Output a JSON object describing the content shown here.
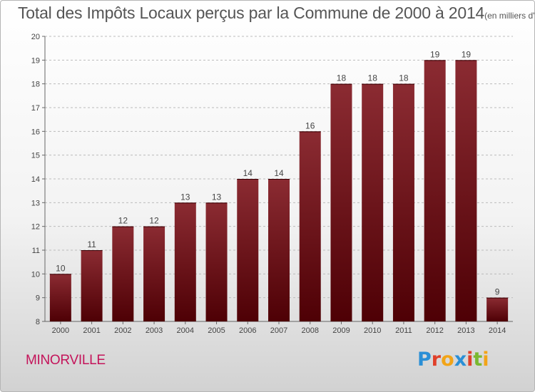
{
  "title": "Total des Impôts Locaux perçus par la Commune de 2000 à 2014",
  "subtitle": "(en milliers d'€)",
  "commune": "MINORVILLE",
  "logo": "Proxiti",
  "colors": {
    "bar": "#6e0d14",
    "bar_light": "#8a2a30",
    "commune_text": "#c4145a",
    "grid": "#bbbbbb"
  },
  "chart_data": {
    "type": "bar",
    "title": "Total des Impôts Locaux perçus par la Commune de 2000 à 2014",
    "subtitle": "(en milliers d'€)",
    "xlabel": "",
    "ylabel": "",
    "categories": [
      "2000",
      "2001",
      "2002",
      "2003",
      "2004",
      "2005",
      "2006",
      "2007",
      "2008",
      "2009",
      "2010",
      "2011",
      "2012",
      "2013",
      "2014"
    ],
    "values": [
      10,
      11,
      12,
      12,
      13,
      13,
      14,
      14,
      16,
      18,
      18,
      18,
      19,
      19,
      9
    ],
    "ylim": [
      8,
      20
    ],
    "yticks": [
      8,
      9,
      10,
      11,
      12,
      13,
      14,
      15,
      16,
      17,
      18,
      19,
      20
    ],
    "grid": true,
    "legend": "none"
  }
}
